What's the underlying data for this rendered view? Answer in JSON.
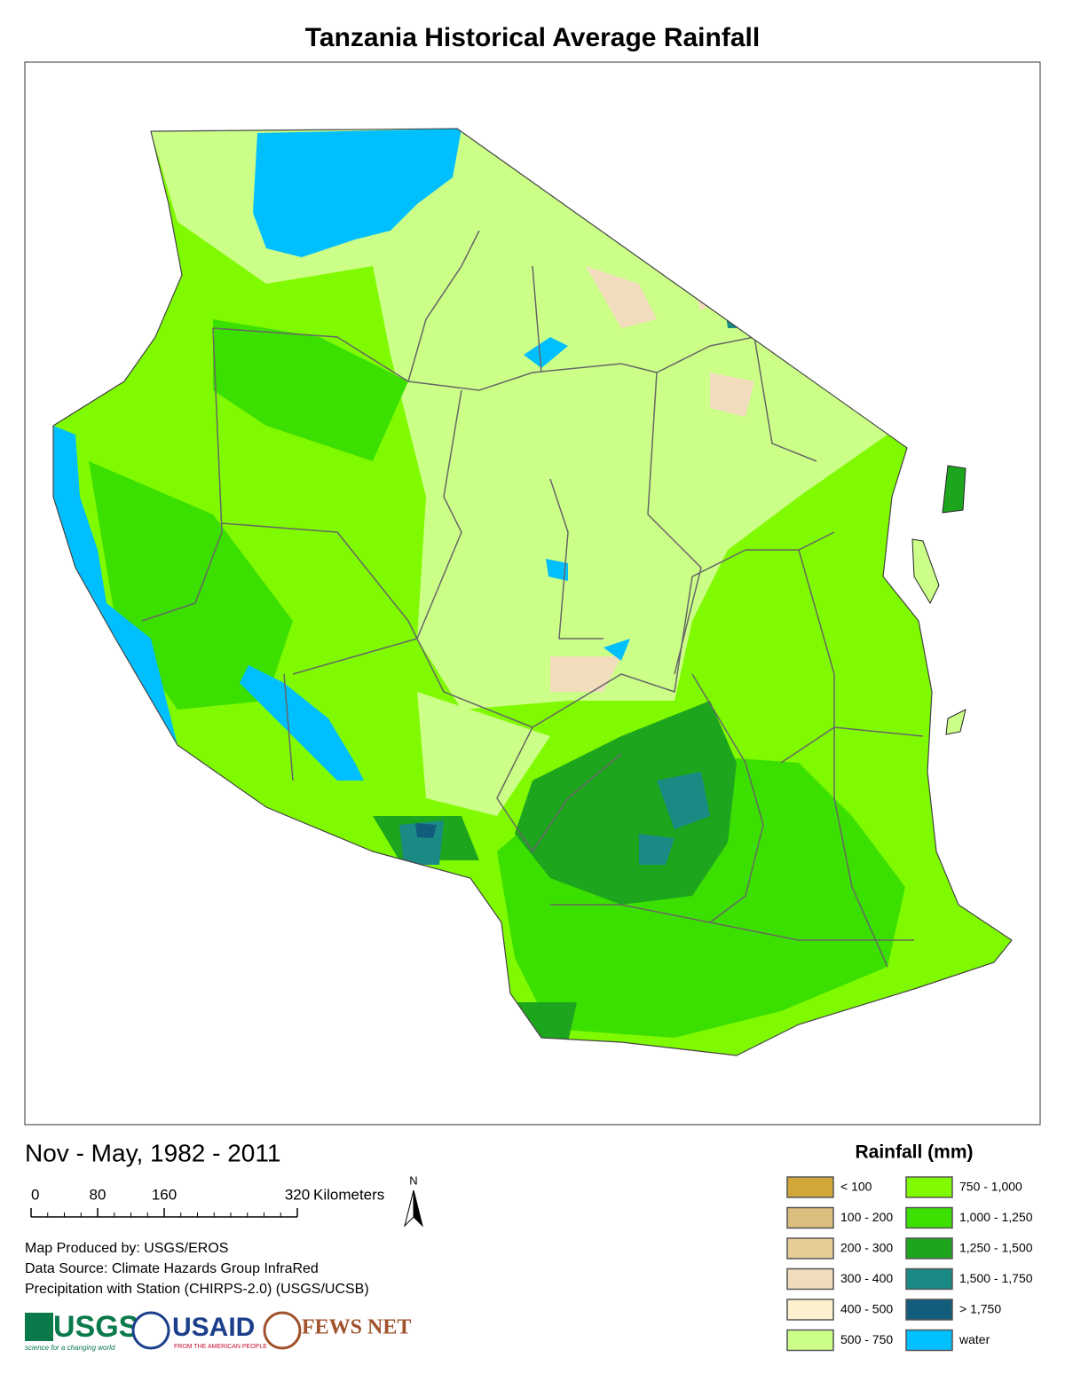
{
  "title": "Tanzania Historical Average Rainfall",
  "period": "Nov - May, 1982 - 2011",
  "scale_bar": {
    "ticks": [
      0,
      80,
      160,
      320
    ],
    "unit": "Kilometers"
  },
  "north": "N",
  "credits": [
    "Map Produced by: USGS/EROS",
    "Data Source: Climate Hazards Group InfraRed",
    "Precipitation with Station (CHIRPS-2.0) (USGS/UCSB)"
  ],
  "logos": {
    "usgs": "USGS",
    "usgs_tagline": "science for a changing world",
    "usaid": "USAID",
    "usaid_tagline": "FROM THE AMERICAN PEOPLE",
    "fews": "FEWS NET"
  },
  "legend": {
    "title": "Rainfall (mm)",
    "items": [
      {
        "label": "< 100",
        "color": "#d1a73a"
      },
      {
        "label": "100 - 200",
        "color": "#dcbf7f"
      },
      {
        "label": "200 - 300",
        "color": "#e7cc98"
      },
      {
        "label": "300 - 400",
        "color": "#f1dcbd"
      },
      {
        "label": "400 - 500",
        "color": "#fdf0cd"
      },
      {
        "label": "500 - 750",
        "color": "#ccff88"
      },
      {
        "label": "750 - 1,000",
        "color": "#80fa00"
      },
      {
        "label": "1,000 - 1,250",
        "color": "#3ce000"
      },
      {
        "label": "1,250 - 1,500",
        "color": "#1ea51e"
      },
      {
        "label": "1,500 - 1,750",
        "color": "#1a8a85"
      },
      {
        "label": "> 1,750",
        "color": "#125c7c"
      },
      {
        "label": "water",
        "color": "#00bfff"
      }
    ]
  }
}
